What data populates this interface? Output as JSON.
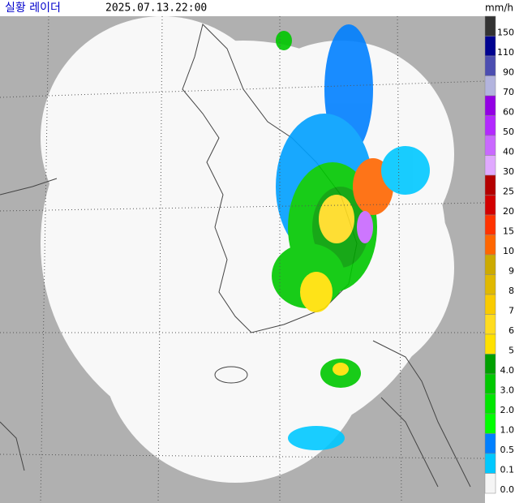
{
  "header": {
    "title": "실황 레이더",
    "time": "2025.07.13.22:00"
  },
  "legend": {
    "unit": "mm/h",
    "levels": [
      {
        "label": "150",
        "color": "#333333"
      },
      {
        "label": "110",
        "color": "#000390"
      },
      {
        "label": "90",
        "color": "#4c4eb1"
      },
      {
        "label": "70",
        "color": "#b3b4de"
      },
      {
        "label": "60",
        "color": "#9300e4"
      },
      {
        "label": "50",
        "color": "#b329ff"
      },
      {
        "label": "40",
        "color": "#c969ff"
      },
      {
        "label": "30",
        "color": "#e0a9ff"
      },
      {
        "label": "25",
        "color": "#b40000"
      },
      {
        "label": "20",
        "color": "#d20000"
      },
      {
        "label": "15",
        "color": "#ff3300"
      },
      {
        "label": "10",
        "color": "#ff6600"
      },
      {
        "label": "9",
        "color": "#ccaa00"
      },
      {
        "label": "8",
        "color": "#e0b900"
      },
      {
        "label": "7",
        "color": "#f9cb00"
      },
      {
        "label": "6",
        "color": "#ffdc1f"
      },
      {
        "label": "5",
        "color": "#ffe100"
      },
      {
        "label": "4.0",
        "color": "#00a000"
      },
      {
        "label": "3.0",
        "color": "#00c800"
      },
      {
        "label": "2.0",
        "color": "#00e600"
      },
      {
        "label": "1.0",
        "color": "#00ff00"
      },
      {
        "label": "0.5",
        "color": "#0080ff"
      },
      {
        "label": "0.1",
        "color": "#00c8ff"
      },
      {
        "label": "0.0",
        "color": "#f5f5f5"
      }
    ]
  }
}
